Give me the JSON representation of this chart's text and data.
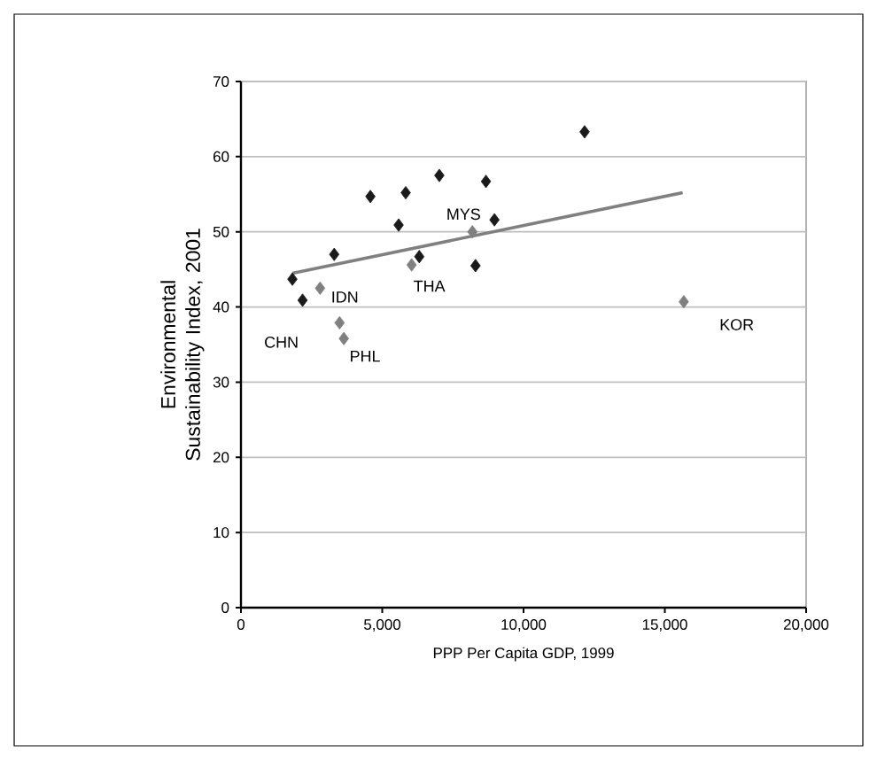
{
  "chart_data": {
    "type": "scatter",
    "xlabel": "PPP Per Capita GDP, 1999",
    "ylabel": "Environmental Sustainability Index, 2001",
    "marker": "diamond",
    "grid": "y",
    "xlim": [
      0,
      20000
    ],
    "ylim": [
      0,
      70
    ],
    "xticks": [
      {
        "value": 0,
        "label": "0"
      },
      {
        "value": 5000,
        "label": "5,000"
      },
      {
        "value": 10000,
        "label": "10,000"
      },
      {
        "value": 15000,
        "label": "15,000"
      },
      {
        "value": 20000,
        "label": "20,000"
      }
    ],
    "yticks": [
      0,
      10,
      20,
      30,
      40,
      50,
      60,
      70
    ],
    "series": [
      {
        "color": "#1a1a1a",
        "x": [
          12160,
          4580,
          5830,
          7020,
          8670,
          5580,
          8970,
          3300,
          6310,
          8300,
          1820,
          2180
        ],
        "values": [
          63.3,
          54.7,
          55.2,
          57.5,
          56.7,
          50.9,
          51.6,
          47.0,
          46.7,
          45.5,
          43.7,
          40.9
        ]
      },
      {
        "color": "#808080",
        "x": [
          2800,
          3490,
          3640,
          6040,
          8190,
          15670
        ],
        "values": [
          42.5,
          37.9,
          35.8,
          45.6,
          50.0,
          40.7
        ]
      },
      {
        "type": "line",
        "marker": "none",
        "color": "#808080",
        "x": [
          1820,
          15630
        ],
        "values": [
          44.5,
          55.2
        ]
      }
    ],
    "annotations": [
      {
        "text": "CHN",
        "x": 3490,
        "y": 37.9
      },
      {
        "text": "IDN",
        "x": 2800,
        "y": 42.5
      },
      {
        "text": "PHL",
        "x": 3640,
        "y": 35.8
      },
      {
        "text": "THA",
        "x": 6040,
        "y": 45.6
      },
      {
        "text": "MYS",
        "x": 8190,
        "y": 50.0
      },
      {
        "text": "KOR",
        "x": 15670,
        "y": 40.7
      }
    ]
  }
}
